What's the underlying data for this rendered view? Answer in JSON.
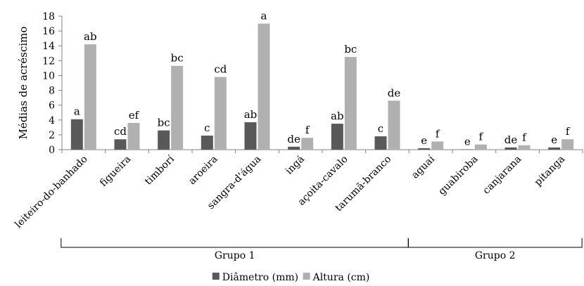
{
  "chart_data": {
    "type": "bar",
    "title": "",
    "ylabel": "Médias de acréscimo",
    "xlabel": "",
    "ylim": [
      0,
      18
    ],
    "yticks": [
      0,
      2,
      4,
      6,
      8,
      10,
      12,
      14,
      16,
      18
    ],
    "grid": false,
    "legend_position": "bottom",
    "categories": [
      "leiteiro-do-banhado",
      "figueira",
      "timborí",
      "aroeira",
      "sangra-d'água",
      "ingá",
      "açoita-cavalo",
      "tarumã-branco",
      "aguaí",
      "guabiroba",
      "canjarana",
      "pitanga"
    ],
    "series": [
      {
        "name": "Diâmetro (mm)",
        "color": "#595959",
        "values": [
          4.1,
          1.4,
          2.6,
          1.9,
          3.7,
          0.4,
          3.5,
          1.8,
          0.2,
          0.05,
          0.3,
          0.3
        ],
        "labels": [
          "a",
          "cd",
          "bc",
          "c",
          "ab",
          "de",
          "ab",
          "c",
          "e",
          "e",
          "de",
          "e"
        ]
      },
      {
        "name": "Altura (cm)",
        "color": "#b0b0b0",
        "values": [
          14.2,
          3.6,
          11.3,
          9.8,
          17.0,
          1.6,
          12.5,
          6.6,
          1.1,
          0.7,
          0.6,
          1.4
        ],
        "labels": [
          "ab",
          "ef",
          "bc",
          "cd",
          "a",
          "f",
          "bc",
          "de",
          "f",
          "f",
          "f",
          "f"
        ]
      }
    ],
    "groups": [
      {
        "label": "Grupo 1",
        "start": 0,
        "end": 7
      },
      {
        "label": "Grupo 2",
        "start": 8,
        "end": 11
      }
    ]
  }
}
